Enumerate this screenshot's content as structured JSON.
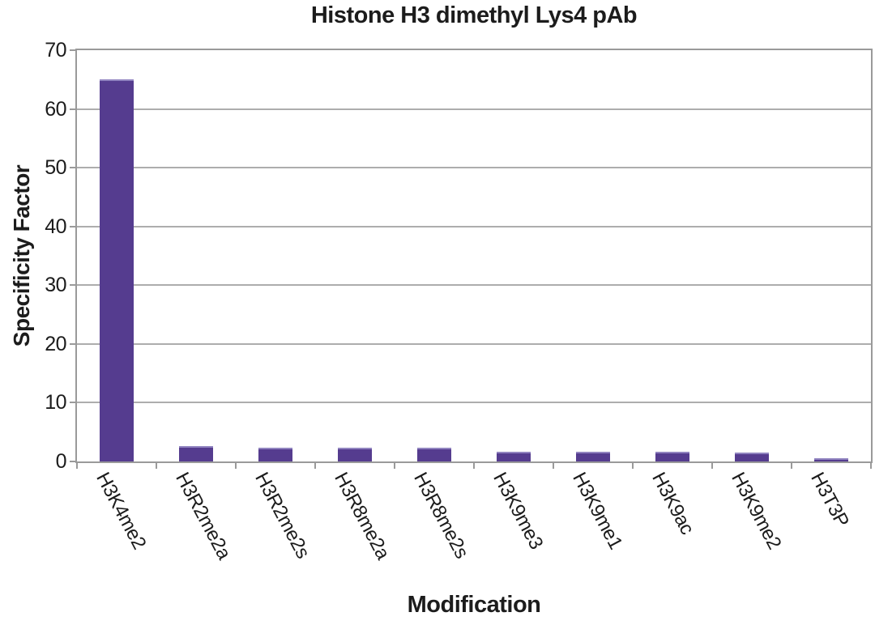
{
  "chart_data": {
    "type": "bar",
    "title": "Histone H3 dimethyl Lys4 pAb",
    "xlabel": "Modification",
    "ylabel": "Specificity Factor",
    "categories": [
      "H3K4me2",
      "H3R2me2a",
      "H3R2me2s",
      "H3R8me2a",
      "H3R8me2s",
      "H3K9me3",
      "H3K9me1",
      "H3K9ac",
      "H3K9me2",
      "H3T3P"
    ],
    "values": [
      65,
      2.6,
      2.3,
      2.3,
      2.4,
      1.7,
      1.7,
      1.7,
      1.5,
      0.5
    ],
    "ylim": [
      0,
      70
    ],
    "yticks": [
      0,
      10,
      20,
      30,
      40,
      50,
      60,
      70
    ],
    "grid": true,
    "legend": false,
    "bar_color": "#553C8F",
    "bar_highlight_color": "#9184c0",
    "grid_color": "#adadad",
    "frame_color": "#9a9a9a",
    "text_color": "#1c1c1c",
    "background_color": "#ffffff"
  }
}
